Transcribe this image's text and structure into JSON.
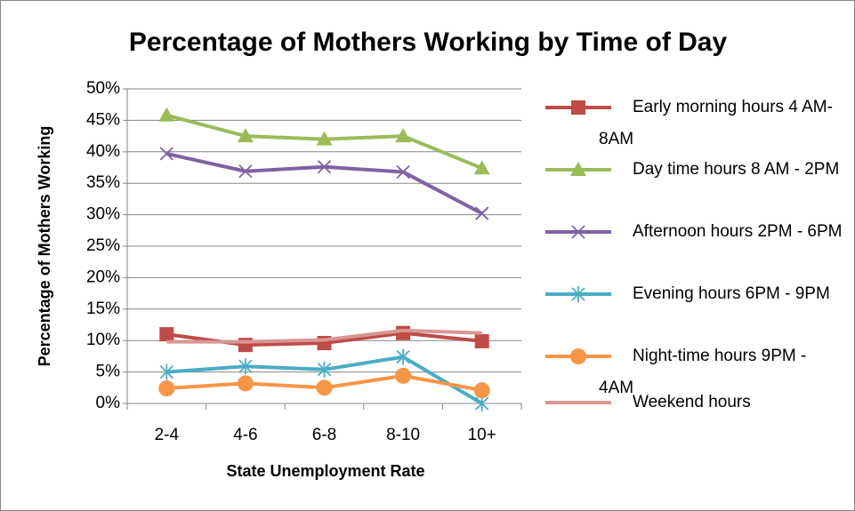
{
  "chart_data": {
    "type": "line",
    "title": "Percentage of Mothers Working by Time of Day",
    "x_label": "State Unemployment Rate",
    "y_label": "Percentage of Mothers Working",
    "categories": [
      "2-4",
      "4-6",
      "6-8",
      "8-10",
      "10+"
    ],
    "ylim": [
      0,
      50
    ],
    "yticks": [
      {
        "value": 0,
        "label": "0%"
      },
      {
        "value": 5,
        "label": "5%"
      },
      {
        "value": 10,
        "label": "10%"
      },
      {
        "value": 15,
        "label": "15%"
      },
      {
        "value": 20,
        "label": "20%"
      },
      {
        "value": 25,
        "label": "25%"
      },
      {
        "value": 30,
        "label": "30%"
      },
      {
        "value": 35,
        "label": "35%"
      },
      {
        "value": 40,
        "label": "40%"
      },
      {
        "value": 45,
        "label": "45%"
      },
      {
        "value": 50,
        "label": "50%"
      }
    ],
    "grid": true,
    "legend": "right",
    "series": [
      {
        "name": "Early morning hours 4 AM-8AM",
        "color": "#be4b48",
        "marker": "square",
        "values": [
          11.0,
          9.3,
          9.6,
          11.2,
          9.9
        ]
      },
      {
        "name": "Day time hours 8 AM - 2PM",
        "color": "#9bbb59",
        "marker": "triangle",
        "values": [
          45.8,
          42.5,
          42.0,
          42.5,
          37.4
        ]
      },
      {
        "name": "Afternoon hours 2PM - 6PM",
        "color": "#7f62a3",
        "marker": "x",
        "values": [
          39.7,
          36.9,
          37.6,
          36.8,
          30.2
        ]
      },
      {
        "name": "Evening hours 6PM - 9PM",
        "color": "#4bacc6",
        "marker": "star",
        "values": [
          5.0,
          5.9,
          5.4,
          7.4,
          0
        ]
      },
      {
        "name": "Night-time hours 9PM - 4AM",
        "color": "#f79646",
        "marker": "circle",
        "values": [
          2.4,
          3.2,
          2.5,
          4.4,
          2.1
        ]
      },
      {
        "name": "Weekend hours",
        "color": "#d99694",
        "marker": "none",
        "values": [
          9.8,
          9.8,
          10.1,
          11.6,
          11.2
        ]
      }
    ]
  }
}
